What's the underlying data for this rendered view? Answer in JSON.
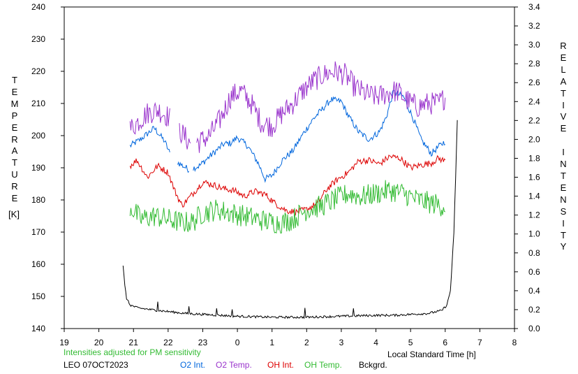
{
  "chart_data": {
    "type": "line",
    "left_axis": {
      "title": "TEMPERATURE",
      "unit": "[K]",
      "range": [
        140,
        240
      ],
      "ticks": [
        "140",
        "150",
        "160",
        "170",
        "180",
        "190",
        "200",
        "210",
        "220",
        "230",
        "240"
      ]
    },
    "right_axis": {
      "title": "RELATIVE INTENSITY",
      "range": [
        0.0,
        3.4
      ],
      "ticks": [
        "0.0",
        "0.2",
        "0.4",
        "0.6",
        "0.8",
        "1.0",
        "1.2",
        "1.4",
        "1.6",
        "1.8",
        "2.0",
        "2.2",
        "2.4",
        "2.6",
        "2.8",
        "3.0",
        "3.2",
        "3.4"
      ]
    },
    "x_axis": {
      "label": "Local Standard Time [h]",
      "range": [
        19,
        32
      ],
      "tick_labels": [
        "19",
        "20",
        "21",
        "22",
        "23",
        "0",
        "1",
        "2",
        "3",
        "4",
        "5",
        "6",
        "7",
        "8"
      ]
    },
    "note": "Intensities adjusted for PM sensitivity",
    "station": "LEO 07OCT2023",
    "series": [
      {
        "name": "O2 Int.",
        "axis": "right",
        "color": "#0066dd",
        "noise": 0.035,
        "gaps": [
          [
            22.05,
            22.25
          ],
          [
            22.62,
            22.72
          ]
        ],
        "points": [
          [
            20.9,
            1.93
          ],
          [
            21.2,
            2.0
          ],
          [
            21.6,
            2.12
          ],
          [
            21.9,
            1.98
          ],
          [
            22.05,
            1.85
          ],
          [
            22.3,
            1.75
          ],
          [
            22.6,
            1.68
          ],
          [
            22.9,
            1.72
          ],
          [
            23.2,
            1.82
          ],
          [
            23.6,
            1.95
          ],
          [
            23.8,
            1.96
          ],
          [
            24.0,
            2.02
          ],
          [
            24.3,
            1.93
          ],
          [
            24.6,
            1.75
          ],
          [
            24.8,
            1.58
          ],
          [
            25.0,
            1.62
          ],
          [
            25.3,
            1.78
          ],
          [
            25.6,
            1.88
          ],
          [
            25.9,
            2.06
          ],
          [
            26.2,
            2.22
          ],
          [
            26.4,
            2.3
          ],
          [
            26.7,
            2.42
          ],
          [
            27.0,
            2.4
          ],
          [
            27.2,
            2.25
          ],
          [
            27.5,
            2.08
          ],
          [
            27.8,
            2.0
          ],
          [
            28.1,
            2.08
          ],
          [
            28.3,
            2.24
          ],
          [
            28.5,
            2.5
          ],
          [
            28.8,
            2.45
          ],
          [
            29.1,
            2.2
          ],
          [
            29.3,
            2.0
          ],
          [
            29.6,
            1.85
          ],
          [
            29.8,
            1.92
          ],
          [
            30.0,
            1.98
          ]
        ]
      },
      {
        "name": "O2 Temp.",
        "axis": "left",
        "color": "#9933cc",
        "noise": 3.6,
        "gaps": [
          [
            22.05,
            22.3
          ],
          [
            22.65,
            22.8
          ]
        ],
        "points": [
          [
            20.9,
            202
          ],
          [
            21.1,
            204
          ],
          [
            21.4,
            207
          ],
          [
            21.7,
            208
          ],
          [
            22.0,
            206
          ],
          [
            22.3,
            202
          ],
          [
            22.6,
            198
          ],
          [
            22.9,
            198
          ],
          [
            23.2,
            200
          ],
          [
            23.5,
            205
          ],
          [
            23.8,
            212
          ],
          [
            24.1,
            214
          ],
          [
            24.4,
            210
          ],
          [
            24.7,
            204
          ],
          [
            25.0,
            203
          ],
          [
            25.3,
            207
          ],
          [
            25.6,
            210
          ],
          [
            25.9,
            214
          ],
          [
            26.2,
            217
          ],
          [
            26.5,
            219
          ],
          [
            26.8,
            220
          ],
          [
            27.1,
            219
          ],
          [
            27.4,
            215
          ],
          [
            27.7,
            213
          ],
          [
            28.0,
            212
          ],
          [
            28.3,
            213
          ],
          [
            28.6,
            214
          ],
          [
            28.9,
            211
          ],
          [
            29.2,
            209
          ],
          [
            29.5,
            210
          ],
          [
            29.8,
            210
          ],
          [
            30.0,
            212
          ]
        ]
      },
      {
        "name": "OH Int.",
        "axis": "right",
        "color": "#dd0000",
        "noise": 0.035,
        "gaps": [],
        "points": [
          [
            20.9,
            1.72
          ],
          [
            21.1,
            1.78
          ],
          [
            21.4,
            1.6
          ],
          [
            21.7,
            1.72
          ],
          [
            22.0,
            1.65
          ],
          [
            22.2,
            1.45
          ],
          [
            22.4,
            1.3
          ],
          [
            22.7,
            1.42
          ],
          [
            23.0,
            1.55
          ],
          [
            23.3,
            1.52
          ],
          [
            23.6,
            1.48
          ],
          [
            23.9,
            1.46
          ],
          [
            24.2,
            1.4
          ],
          [
            24.5,
            1.45
          ],
          [
            24.8,
            1.42
          ],
          [
            25.1,
            1.32
          ],
          [
            25.4,
            1.25
          ],
          [
            25.7,
            1.23
          ],
          [
            26.0,
            1.26
          ],
          [
            26.3,
            1.32
          ],
          [
            26.6,
            1.48
          ],
          [
            26.9,
            1.58
          ],
          [
            27.2,
            1.65
          ],
          [
            27.5,
            1.77
          ],
          [
            27.8,
            1.78
          ],
          [
            28.1,
            1.74
          ],
          [
            28.4,
            1.82
          ],
          [
            28.7,
            1.8
          ],
          [
            29.0,
            1.7
          ],
          [
            29.3,
            1.73
          ],
          [
            29.6,
            1.75
          ],
          [
            29.8,
            1.8
          ],
          [
            30.0,
            1.77
          ]
        ]
      },
      {
        "name": "OH Temp.",
        "axis": "left",
        "color": "#33bb33",
        "noise": 3.5,
        "gaps": [],
        "points": [
          [
            20.9,
            178
          ],
          [
            21.2,
            174
          ],
          [
            21.6,
            175
          ],
          [
            22.0,
            174
          ],
          [
            22.4,
            173
          ],
          [
            22.7,
            173
          ],
          [
            23.0,
            176
          ],
          [
            23.4,
            177
          ],
          [
            23.8,
            176
          ],
          [
            24.2,
            175
          ],
          [
            24.6,
            174
          ],
          [
            25.0,
            173
          ],
          [
            25.3,
            173
          ],
          [
            25.6,
            174
          ],
          [
            26.0,
            177
          ],
          [
            26.4,
            178
          ],
          [
            26.8,
            180
          ],
          [
            27.2,
            182
          ],
          [
            27.6,
            181
          ],
          [
            28.0,
            182
          ],
          [
            28.4,
            183
          ],
          [
            28.8,
            182
          ],
          [
            29.2,
            180
          ],
          [
            29.6,
            179
          ],
          [
            30.0,
            178
          ]
        ]
      },
      {
        "name": "Bckgrd.",
        "axis": "right",
        "color": "#000000",
        "noise": 0.012,
        "gaps": [],
        "points": [
          [
            20.7,
            0.66
          ],
          [
            20.75,
            0.45
          ],
          [
            20.8,
            0.32
          ],
          [
            20.9,
            0.25
          ],
          [
            21.1,
            0.22
          ],
          [
            21.5,
            0.2
          ],
          [
            22.0,
            0.18
          ],
          [
            22.5,
            0.16
          ],
          [
            23.0,
            0.15
          ],
          [
            24.0,
            0.13
          ],
          [
            25.0,
            0.12
          ],
          [
            26.0,
            0.12
          ],
          [
            27.0,
            0.13
          ],
          [
            28.0,
            0.14
          ],
          [
            28.5,
            0.14
          ],
          [
            29.0,
            0.15
          ],
          [
            29.5,
            0.16
          ],
          [
            29.9,
            0.19
          ],
          [
            30.05,
            0.25
          ],
          [
            30.15,
            0.4
          ],
          [
            30.25,
            1.0
          ],
          [
            30.3,
            1.6
          ],
          [
            30.35,
            2.2
          ]
        ],
        "spikes": [
          [
            21.7,
            0.1
          ],
          [
            22.6,
            0.08
          ],
          [
            23.4,
            0.08
          ],
          [
            23.85,
            0.06
          ],
          [
            25.95,
            0.09
          ],
          [
            27.35,
            0.08
          ]
        ]
      }
    ],
    "grid": false,
    "legend": "bottom"
  }
}
